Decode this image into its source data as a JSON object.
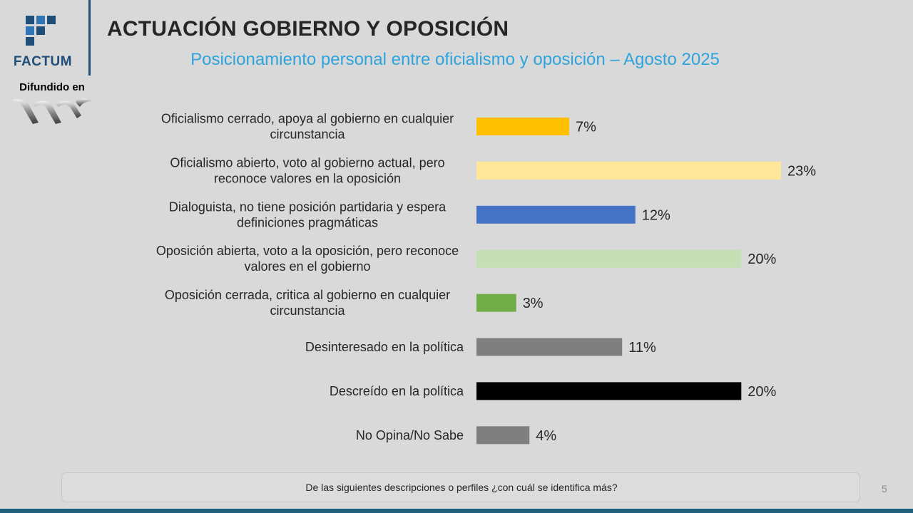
{
  "brand": {
    "name": "FACTUM",
    "diffused_label": "Difundido en"
  },
  "header": {
    "title": "ACTUACIÓN GOBIERNO Y OPOSICIÓN",
    "subtitle": "Posicionamiento personal entre oficialismo y oposición – Agosto 2025"
  },
  "colors": {
    "brand_blue": "#1f4e79",
    "subtitle_blue": "#2ea3dc"
  },
  "chart_data": {
    "type": "bar",
    "orientation": "horizontal",
    "title": "Posicionamiento personal entre oficialismo y oposición – Agosto 2025",
    "xlabel": "",
    "ylabel": "",
    "xlim": [
      0,
      23
    ],
    "value_suffix": "%",
    "grid": false,
    "categories": [
      [
        "Oficialismo cerrado, apoya al gobierno en cualquier",
        "circunstancia"
      ],
      [
        "Oficialismo abierto, voto al gobierno actual, pero",
        "reconoce valores en la oposición"
      ],
      [
        "Dialoguista, no tiene posición partidaria y espera",
        "definiciones pragmáticas"
      ],
      [
        "Oposición abierta, voto a la oposición, pero reconoce",
        "valores en el gobierno"
      ],
      [
        "Oposición cerrada, critica al gobierno en cualquier",
        "circunstancia"
      ],
      [
        "Desinteresado en la política"
      ],
      [
        "Descreído en la política"
      ],
      [
        "No Opina/No Sabe"
      ]
    ],
    "values": [
      7,
      23,
      12,
      20,
      3,
      11,
      20,
      4
    ],
    "colors": [
      "#ffc000",
      "#ffe699",
      "#4472c4",
      "#c5e0b4",
      "#70ad47",
      "#7f7f7f",
      "#000000",
      "#7f7f7f"
    ]
  },
  "footer": {
    "question": "De las siguientes descripciones o perfiles ¿con cuál se identifica más?",
    "page_number": "5"
  }
}
